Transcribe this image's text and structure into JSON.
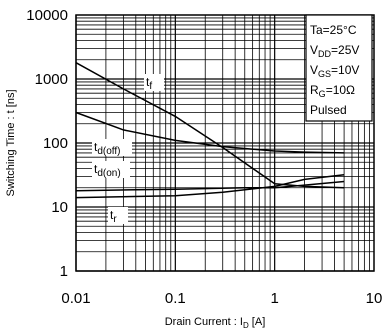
{
  "chart_data": {
    "type": "line",
    "xscale": "log",
    "yscale": "log",
    "xlim": [
      0.01,
      10
    ],
    "ylim": [
      1,
      10000
    ],
    "x_ticks": [
      "0.01",
      "0.1",
      "1",
      "10"
    ],
    "y_ticks": [
      "1",
      "10",
      "100",
      "1000",
      "10000"
    ],
    "xlabel": {
      "main": "Drain Current : I",
      "sub": "D",
      "unit": " [A]"
    },
    "ylabel": "Switching Time : t [ns]",
    "grid": true,
    "conditions": [
      {
        "main": "Ta=25°C",
        "sub": "",
        "tail": ""
      },
      {
        "main": "V",
        "sub": "DD",
        "tail": "=25V"
      },
      {
        "main": "V",
        "sub": "GS",
        "tail": "=10V"
      },
      {
        "main": "R",
        "sub": "G",
        "tail": "=10Ω"
      },
      {
        "main": "Pulsed",
        "sub": "",
        "tail": ""
      }
    ],
    "series": [
      {
        "name": "tf",
        "label_main": "t",
        "label_sub": "f",
        "x": [
          0.01,
          0.03,
          0.1,
          0.3,
          1,
          2,
          5
        ],
        "y": [
          1800,
          700,
          260,
          85,
          23,
          21,
          20
        ]
      },
      {
        "name": "td(off)",
        "label_main": "t",
        "label_sub": "d(off)",
        "x": [
          0.01,
          0.03,
          0.1,
          0.3,
          1,
          2,
          5
        ],
        "y": [
          300,
          160,
          110,
          88,
          75,
          72,
          70
        ]
      },
      {
        "name": "td(on)",
        "label_main": "t",
        "label_sub": "d(on)",
        "x": [
          0.01,
          0.1,
          0.3,
          1,
          2,
          5
        ],
        "y": [
          14,
          15,
          17,
          21,
          27,
          32
        ]
      },
      {
        "name": "tr",
        "label_main": "t",
        "label_sub": "r",
        "x": [
          0.01,
          0.1,
          0.5,
          1,
          2,
          5
        ],
        "y": [
          18,
          19,
          20,
          20,
          22,
          25
        ]
      }
    ]
  }
}
